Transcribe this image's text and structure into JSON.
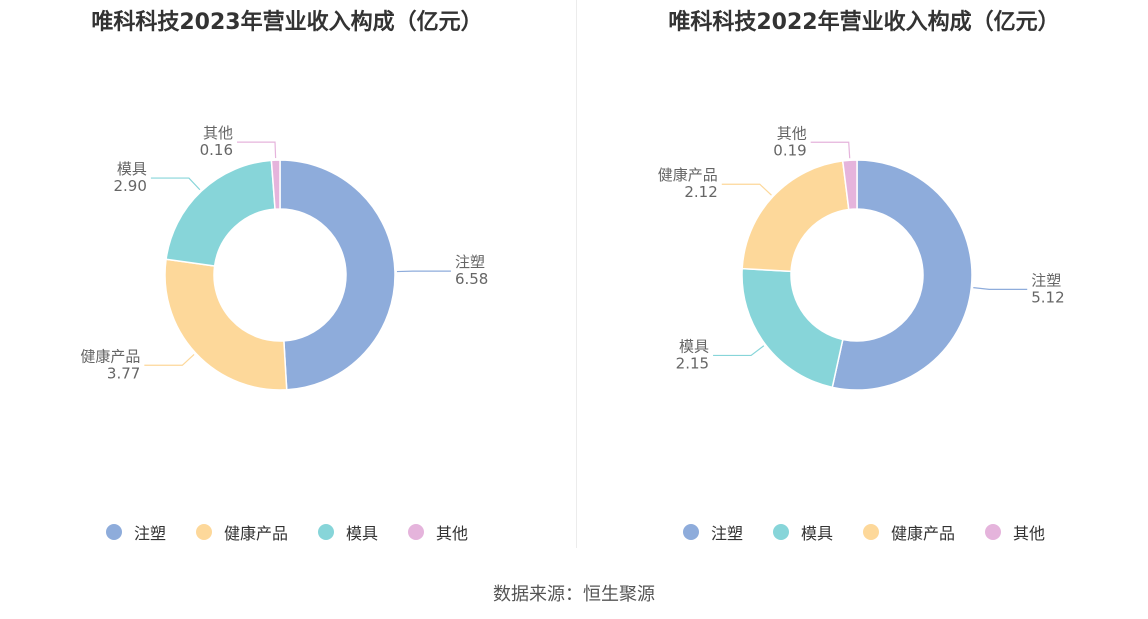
{
  "source": "数据来源：恒生聚源",
  "colors": {
    "注塑": "#8eacdb",
    "健康产品": "#fdd89a",
    "模具": "#87d5d9",
    "其他": "#e5b4dc"
  },
  "chart_data": [
    {
      "type": "pie",
      "title": "唯科科技2023年营业收入构成（亿元）",
      "categories": [
        "注塑",
        "健康产品",
        "模具",
        "其他"
      ],
      "values": [
        6.58,
        3.77,
        2.9,
        0.16
      ],
      "value_labels": [
        "6.58",
        "3.77",
        "2.90",
        "0.16"
      ],
      "legend": "bottom"
    },
    {
      "type": "pie",
      "title": "唯科科技2022年营业收入构成（亿元）",
      "categories": [
        "注塑",
        "模具",
        "健康产品",
        "其他"
      ],
      "values": [
        5.12,
        2.15,
        2.12,
        0.19
      ],
      "value_labels": [
        "5.12",
        "2.15",
        "2.12",
        "0.19"
      ],
      "legend": "bottom"
    }
  ]
}
